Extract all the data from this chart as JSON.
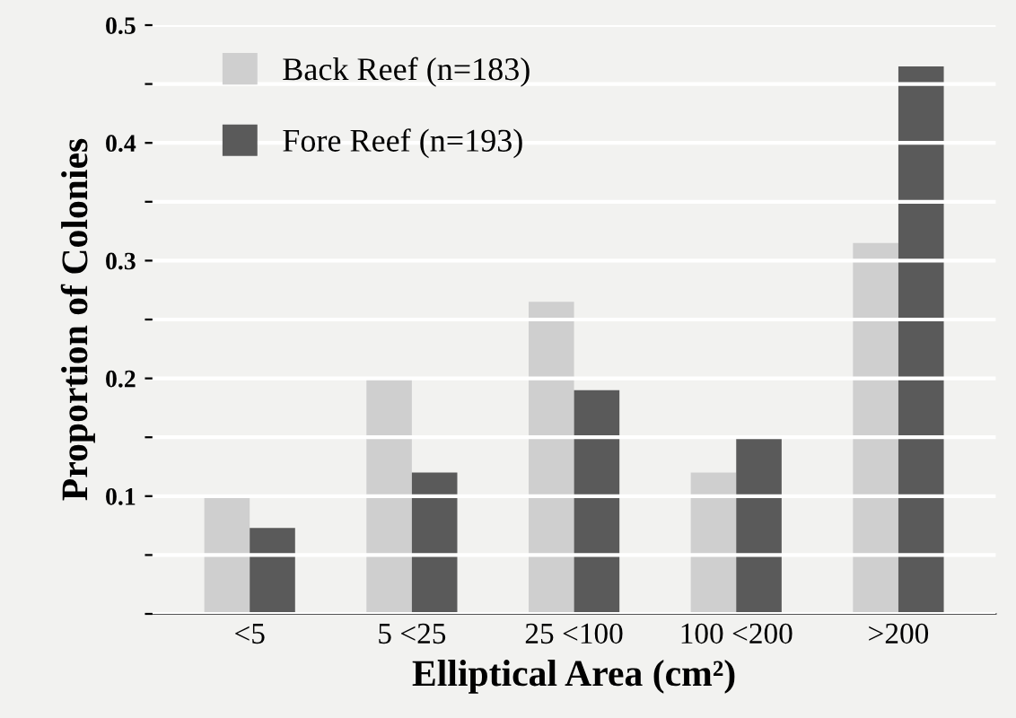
{
  "chart_data": {
    "type": "bar",
    "xlabel": "Elliptical Area (cm²)",
    "ylabel": "Proportion of Colonies",
    "categories": [
      "<5",
      "5 <25",
      "25 <100",
      "100 <200",
      ">200"
    ],
    "series": [
      {
        "name": "Back Reef (n=183)",
        "color": "#cfcfcf",
        "values": [
          0.1,
          0.2,
          0.265,
          0.12,
          0.315
        ]
      },
      {
        "name": "Fore Reef (n=193)",
        "color": "#5a5a5a",
        "values": [
          0.073,
          0.12,
          0.19,
          0.15,
          0.465
        ]
      }
    ],
    "ylim": [
      0,
      0.5
    ],
    "yticks": [
      {
        "value": 0,
        "label": null
      },
      {
        "value": 0.05,
        "label": null
      },
      0.1,
      {
        "value": 0.15,
        "label": null
      },
      0.2,
      {
        "value": 0.25,
        "label": null
      },
      0.3,
      {
        "value": 0.35,
        "label": null
      },
      0.4,
      {
        "value": 0.45,
        "label": null
      },
      0.5
    ],
    "grid": "y",
    "legend": "top left"
  }
}
